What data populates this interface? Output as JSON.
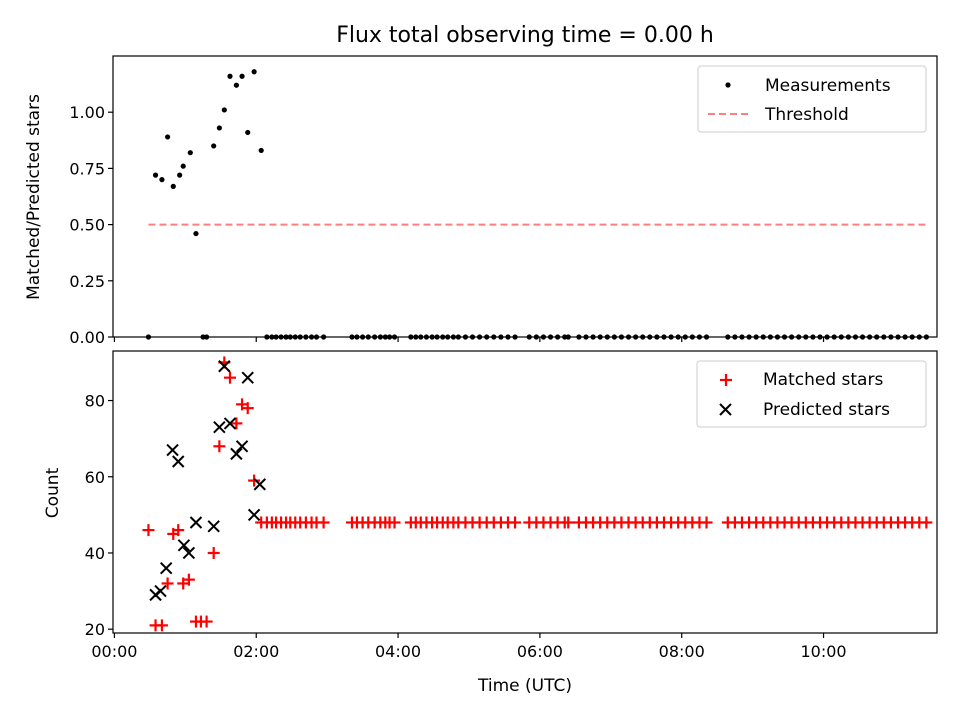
{
  "figure": {
    "title": "Flux total observing time = 0.00 h"
  },
  "chart_data": [
    {
      "type": "scatter",
      "ylabel": "Matched/Predicted stars",
      "xlim": [
        -0.02,
        11.6
      ],
      "ylim": [
        0,
        1.25
      ],
      "yticks": [
        0.0,
        0.25,
        0.5,
        0.75,
        1.0
      ],
      "ytick_labels": [
        "0.00",
        "0.25",
        "0.50",
        "0.75",
        "1.00"
      ],
      "legend_position": "upper right",
      "series": [
        {
          "name": "Measurements",
          "marker": "dot",
          "color": "#000000",
          "x": [
            0.58,
            0.67,
            0.75,
            0.83,
            0.92,
            0.97,
            1.07,
            1.15,
            1.4,
            1.48,
            1.55,
            1.63,
            1.72,
            1.8,
            1.88,
            1.97,
            2.07,
            0.48,
            1.25,
            1.3,
            2.15,
            2.22,
            2.28,
            2.35,
            2.42,
            2.48,
            2.55,
            2.62,
            2.7,
            2.78,
            2.85,
            2.95,
            3.35,
            3.42,
            3.5,
            3.58,
            3.67,
            3.75,
            3.82,
            3.88,
            3.95,
            4.18,
            4.25,
            4.32,
            4.4,
            4.48,
            4.55,
            4.63,
            4.7,
            4.78,
            4.85,
            4.95,
            5.05,
            5.15,
            5.25,
            5.35,
            5.45,
            5.55,
            5.65,
            5.85,
            5.95,
            6.05,
            6.15,
            6.25,
            6.35,
            6.4,
            6.55,
            6.65,
            6.75,
            6.85,
            6.95,
            7.05,
            7.15,
            7.25,
            7.35,
            7.45,
            7.55,
            7.65,
            7.75,
            7.85,
            7.95,
            8.05,
            8.15,
            8.25,
            8.35,
            8.65,
            8.75,
            8.85,
            8.95,
            9.05,
            9.15,
            9.25,
            9.35,
            9.45,
            9.55,
            9.65,
            9.75,
            9.85,
            9.95,
            10.05,
            10.15,
            10.25,
            10.35,
            10.45,
            10.55,
            10.65,
            10.75,
            10.85,
            10.95,
            11.05,
            11.15,
            11.25,
            11.35,
            11.45
          ],
          "y": [
            0.72,
            0.7,
            0.89,
            0.67,
            0.72,
            0.76,
            0.82,
            0.46,
            0.85,
            0.93,
            1.01,
            1.16,
            1.12,
            1.16,
            0.91,
            1.18,
            0.83,
            0.0,
            0.0,
            0.0,
            0.0,
            0.0,
            0.0,
            0.0,
            0.0,
            0.0,
            0.0,
            0.0,
            0.0,
            0.0,
            0.0,
            0.0,
            0.0,
            0.0,
            0.0,
            0.0,
            0.0,
            0.0,
            0.0,
            0.0,
            0.0,
            0.0,
            0.0,
            0.0,
            0.0,
            0.0,
            0.0,
            0.0,
            0.0,
            0.0,
            0.0,
            0.0,
            0.0,
            0.0,
            0.0,
            0.0,
            0.0,
            0.0,
            0.0,
            0.0,
            0.0,
            0.0,
            0.0,
            0.0,
            0.0,
            0.0,
            0.0,
            0.0,
            0.0,
            0.0,
            0.0,
            0.0,
            0.0,
            0.0,
            0.0,
            0.0,
            0.0,
            0.0,
            0.0,
            0.0,
            0.0,
            0.0,
            0.0,
            0.0,
            0.0,
            0.0,
            0.0,
            0.0,
            0.0,
            0.0,
            0.0,
            0.0,
            0.0,
            0.0,
            0.0,
            0.0,
            0.0,
            0.0,
            0.0,
            0.0,
            0.0,
            0.0,
            0.0,
            0.0,
            0.0,
            0.0,
            0.0,
            0.0,
            0.0,
            0.0,
            0.0,
            0.0,
            0.0,
            0.0
          ]
        },
        {
          "name": "Threshold",
          "marker": "dashed-line",
          "color": "#ff7f7f",
          "x": [
            0.48,
            11.45
          ],
          "y": [
            0.5,
            0.5
          ]
        }
      ]
    },
    {
      "type": "scatter",
      "xlabel": "Time (UTC)",
      "ylabel": "Count",
      "xlim": [
        -0.02,
        11.6
      ],
      "ylim": [
        19,
        93
      ],
      "yticks": [
        20,
        40,
        60,
        80
      ],
      "ytick_labels": [
        "20",
        "40",
        "60",
        "80"
      ],
      "xticks": [
        0,
        2,
        4,
        6,
        8,
        10
      ],
      "xtick_labels": [
        "00:00",
        "02:00",
        "04:00",
        "06:00",
        "08:00",
        "10:00"
      ],
      "legend_position": "upper right",
      "series": [
        {
          "name": "Matched stars",
          "marker": "plus",
          "color": "#ff0000",
          "x": [
            0.48,
            0.58,
            0.67,
            0.75,
            0.83,
            0.9,
            0.97,
            1.05,
            1.15,
            1.22,
            1.3,
            1.4,
            1.48,
            1.55,
            1.63,
            1.72,
            1.8,
            1.88,
            1.97,
            2.07,
            2.15,
            2.22,
            2.28,
            2.35,
            2.42,
            2.48,
            2.55,
            2.62,
            2.7,
            2.78,
            2.85,
            2.95,
            3.35,
            3.42,
            3.5,
            3.58,
            3.67,
            3.75,
            3.82,
            3.88,
            3.95,
            4.18,
            4.25,
            4.32,
            4.4,
            4.48,
            4.55,
            4.63,
            4.7,
            4.78,
            4.85,
            4.95,
            5.05,
            5.15,
            5.25,
            5.35,
            5.45,
            5.55,
            5.65,
            5.85,
            5.95,
            6.05,
            6.15,
            6.25,
            6.35,
            6.4,
            6.55,
            6.65,
            6.75,
            6.85,
            6.95,
            7.05,
            7.15,
            7.25,
            7.35,
            7.45,
            7.55,
            7.65,
            7.75,
            7.85,
            7.95,
            8.05,
            8.15,
            8.25,
            8.35,
            8.65,
            8.75,
            8.85,
            8.95,
            9.05,
            9.15,
            9.25,
            9.35,
            9.45,
            9.55,
            9.65,
            9.75,
            9.85,
            9.95,
            10.05,
            10.15,
            10.25,
            10.35,
            10.45,
            10.55,
            10.65,
            10.75,
            10.85,
            10.95,
            11.05,
            11.15,
            11.25,
            11.35,
            11.45
          ],
          "y": [
            46,
            21,
            21,
            32,
            45,
            46,
            32,
            33,
            22,
            22,
            22,
            40,
            68,
            90,
            86,
            74,
            79,
            78,
            59,
            48,
            48,
            48,
            48,
            48,
            48,
            48,
            48,
            48,
            48,
            48,
            48,
            48,
            48,
            48,
            48,
            48,
            48,
            48,
            48,
            48,
            48,
            48,
            48,
            48,
            48,
            48,
            48,
            48,
            48,
            48,
            48,
            48,
            48,
            48,
            48,
            48,
            48,
            48,
            48,
            48,
            48,
            48,
            48,
            48,
            48,
            48,
            48,
            48,
            48,
            48,
            48,
            48,
            48,
            48,
            48,
            48,
            48,
            48,
            48,
            48,
            48,
            48,
            48,
            48,
            48,
            48,
            48,
            48,
            48,
            48,
            48,
            48,
            48,
            48,
            48,
            48,
            48,
            48,
            48,
            48,
            48,
            48,
            48,
            48,
            48,
            48,
            48,
            48,
            48,
            48,
            48,
            48,
            48,
            48
          ]
        },
        {
          "name": "Predicted stars",
          "marker": "x",
          "color": "#000000",
          "x": [
            0.58,
            0.65,
            0.73,
            0.82,
            0.9,
            0.98,
            1.05,
            1.15,
            1.4,
            1.48,
            1.55,
            1.63,
            1.72,
            1.8,
            1.88,
            1.97,
            2.05
          ],
          "y": [
            29,
            30,
            36,
            67,
            64,
            42,
            40,
            48,
            47,
            73,
            89,
            74,
            66,
            68,
            86,
            50,
            58
          ]
        }
      ]
    }
  ]
}
